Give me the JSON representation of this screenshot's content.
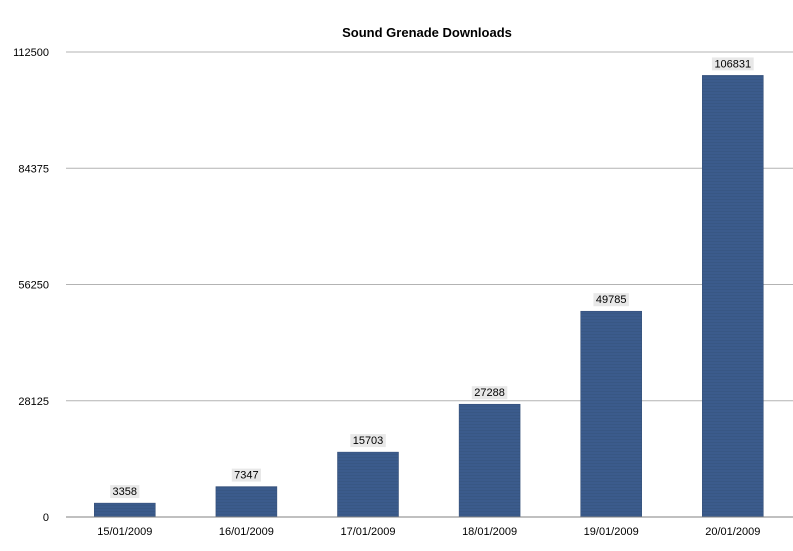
{
  "chart_data": {
    "type": "bar",
    "title": "Sound Grenade Downloads",
    "xlabel": "",
    "ylabel": "",
    "categories": [
      "15/01/2009",
      "16/01/2009",
      "17/01/2009",
      "18/01/2009",
      "19/01/2009",
      "20/01/2009"
    ],
    "values": [
      3358,
      7347,
      15703,
      27288,
      49785,
      106831
    ],
    "data_labels": [
      "3358",
      "7347",
      "15703",
      "27288",
      "49785",
      "106831"
    ],
    "ylim": [
      0,
      112500
    ],
    "y_ticks": [
      0,
      28125,
      56250,
      84375,
      112500
    ],
    "y_tick_labels": [
      "0",
      "28125",
      "56250",
      "84375",
      "112500"
    ],
    "grid": true,
    "legend": "none",
    "bar_color": "#3b5b8c",
    "bar_edge_color": "#2c4670",
    "label_bg_color": "#e6e6e6",
    "grid_color": "#b3b3b3",
    "axis_color": "#808080"
  }
}
